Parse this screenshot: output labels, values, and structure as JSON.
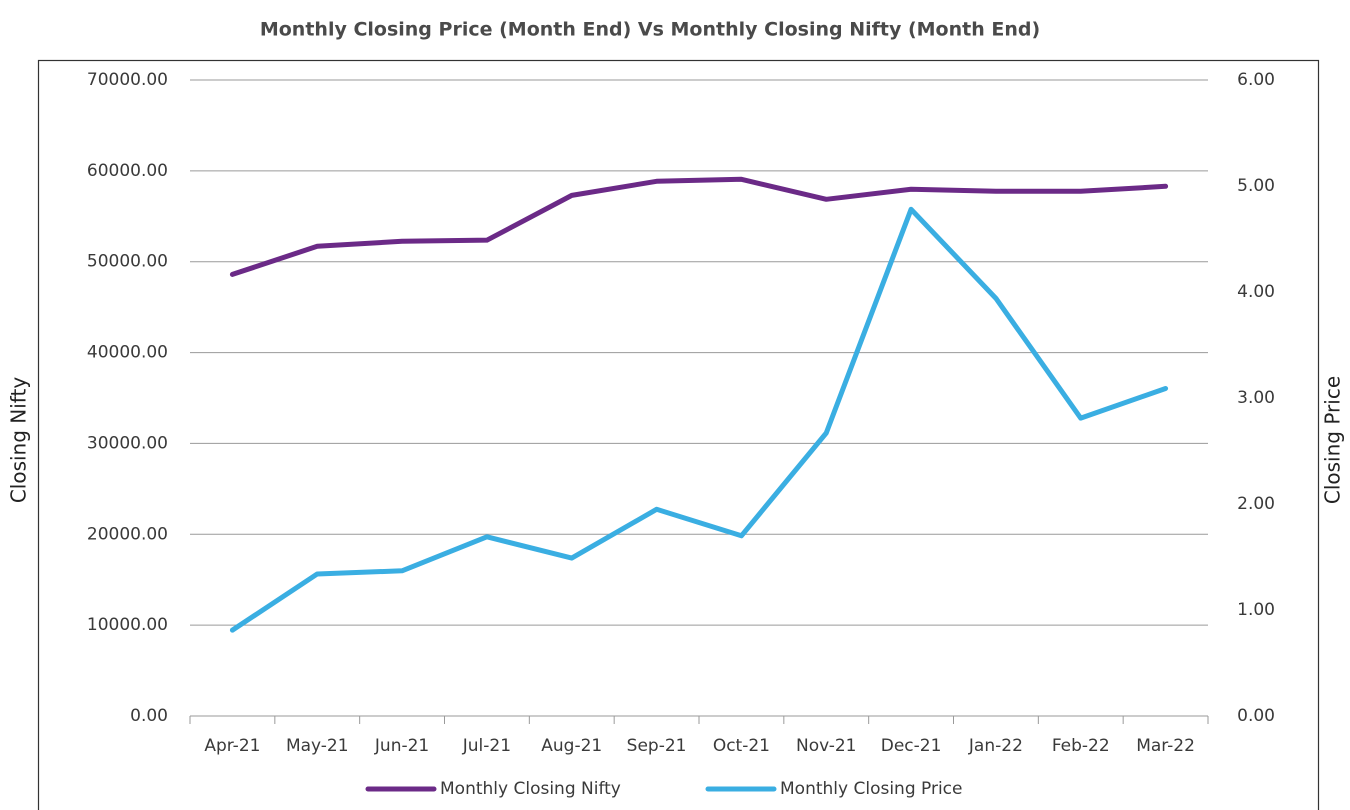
{
  "chart_data": {
    "type": "line",
    "title": "Monthly Closing Price (Month End) Vs Monthly Closing Nifty (Month End)",
    "y_label": "Closing Nifty",
    "y2_label": "Closing Price",
    "categories": [
      "Apr-21",
      "May-21",
      "Jun-21",
      "Jul-21",
      "Aug-21",
      "Sep-21",
      "Oct-21",
      "Nov-21",
      "Dec-21",
      "Jan-22",
      "Feb-22",
      "Mar-22"
    ],
    "series": [
      {
        "name": "Monthly Closing Nifty",
        "color": "#6b2a87",
        "axis": "y",
        "values": [
          48600,
          51700,
          52250,
          52370,
          57300,
          58850,
          59070,
          56870,
          57980,
          57750,
          57750,
          58300
        ]
      },
      {
        "name": "Monthly Closing Price",
        "color": "#3aaee2",
        "axis": "y2",
        "values": [
          0.81,
          1.34,
          1.37,
          1.69,
          1.49,
          1.95,
          1.7,
          2.67,
          4.78,
          3.94,
          2.81,
          3.09
        ]
      }
    ],
    "ylim": [
      0,
      70000
    ],
    "yticks": [
      {
        "value": 0,
        "label": "0.00"
      },
      {
        "value": 10000,
        "label": "10000.00"
      },
      {
        "value": 20000,
        "label": "20000.00"
      },
      {
        "value": 30000,
        "label": "30000.00"
      },
      {
        "value": 40000,
        "label": "40000.00"
      },
      {
        "value": 50000,
        "label": "50000.00"
      },
      {
        "value": 60000,
        "label": "60000.00"
      },
      {
        "value": 70000,
        "label": "70000.00"
      }
    ],
    "y2lim": [
      0,
      6
    ],
    "y2ticks": [
      {
        "value": 0,
        "label": "0.00"
      },
      {
        "value": 1,
        "label": "1.00"
      },
      {
        "value": 2,
        "label": "2.00"
      },
      {
        "value": 3,
        "label": "3.00"
      },
      {
        "value": 4,
        "label": "4.00"
      },
      {
        "value": 5,
        "label": "5.00"
      },
      {
        "value": 6,
        "label": "6.00"
      }
    ],
    "grid": true,
    "legend": "bottom"
  }
}
